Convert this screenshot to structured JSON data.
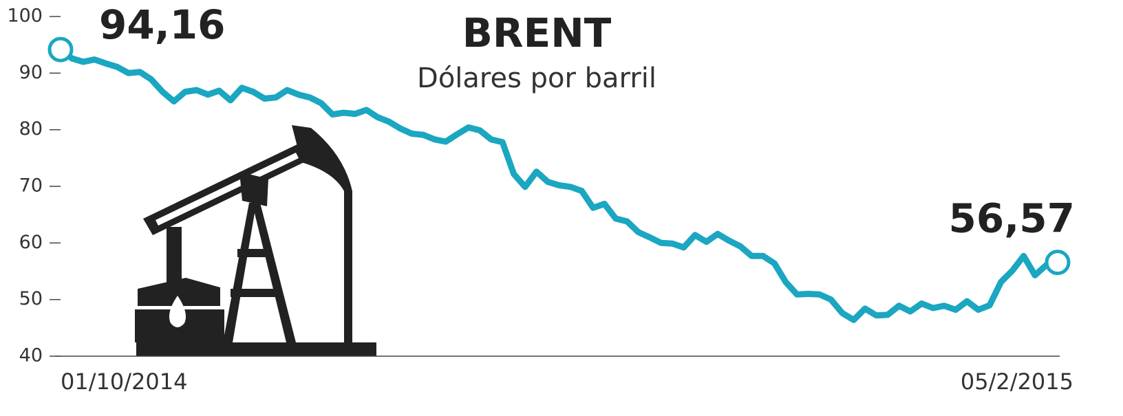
{
  "chart_data": {
    "type": "line",
    "title": "BRENT",
    "subtitle": "Dólares por barril",
    "categories": [
      "01/10/2014",
      null,
      null,
      null,
      null,
      null,
      null,
      null,
      null,
      null,
      null,
      null,
      null,
      null,
      null,
      null,
      null,
      null,
      null,
      null,
      null,
      null,
      null,
      null,
      null,
      null,
      null,
      null,
      null,
      null,
      null,
      null,
      null,
      null,
      null,
      null,
      null,
      null,
      null,
      null,
      null,
      null,
      null,
      null,
      null,
      null,
      null,
      null,
      null,
      null,
      null,
      null,
      null,
      null,
      null,
      null,
      null,
      null,
      null,
      null,
      null,
      null,
      null,
      null,
      null,
      null,
      null,
      null,
      null,
      null,
      null,
      null,
      null,
      null,
      null,
      null,
      null,
      null,
      null,
      null,
      null,
      null,
      null,
      null,
      null,
      null,
      null,
      null,
      "05/2/2015"
    ],
    "values": [
      94.16,
      92.6,
      92,
      92.4,
      91.7,
      91.1,
      90,
      90.2,
      88.9,
      86.7,
      85,
      86.7,
      87,
      86.2,
      86.9,
      85.2,
      87.4,
      86.7,
      85.5,
      85.7,
      87,
      86.2,
      85.7,
      84.7,
      82.7,
      83,
      82.8,
      83.5,
      82.2,
      81.4,
      80.2,
      79.3,
      79.1,
      78.3,
      77.9,
      79.2,
      80.4,
      79.9,
      78.3,
      77.8,
      72.2,
      69.9,
      72.6,
      70.8,
      70.2,
      69.9,
      69.2,
      66.2,
      66.9,
      64.3,
      63.8,
      61.9,
      61,
      60,
      59.9,
      59.2,
      61.4,
      60.2,
      61.6,
      60.4,
      59.4,
      57.7,
      57.7,
      56.4,
      53.1,
      50.9,
      51,
      50.9,
      50,
      47.6,
      46.4,
      48.4,
      47.2,
      47.3,
      48.9,
      47.9,
      49.3,
      48.5,
      48.9,
      48.2,
      49.7,
      48.2,
      49,
      53.1,
      55.1,
      57.7,
      54.3,
      56.1,
      56.57
    ],
    "value_labels": [
      "94,16",
      null,
      null,
      null,
      null,
      null,
      null,
      null,
      null,
      null,
      null,
      null,
      null,
      null,
      null,
      null,
      null,
      null,
      null,
      null,
      null,
      null,
      null,
      null,
      null,
      null,
      null,
      null,
      null,
      null,
      null,
      null,
      null,
      null,
      null,
      null,
      null,
      null,
      null,
      null,
      null,
      null,
      null,
      null,
      null,
      null,
      null,
      null,
      null,
      null,
      null,
      null,
      null,
      null,
      null,
      null,
      null,
      null,
      null,
      null,
      null,
      null,
      null,
      null,
      null,
      null,
      null,
      null,
      null,
      null,
      null,
      null,
      null,
      null,
      null,
      null,
      null,
      null,
      null,
      null,
      null,
      null,
      null,
      null,
      null,
      null,
      null,
      null,
      "56,57"
    ],
    "color": "#1ba6c1",
    "ylim": [
      40,
      100
    ],
    "yticks": [
      40,
      50,
      60,
      70,
      80,
      90,
      100
    ],
    "grid": false
  }
}
